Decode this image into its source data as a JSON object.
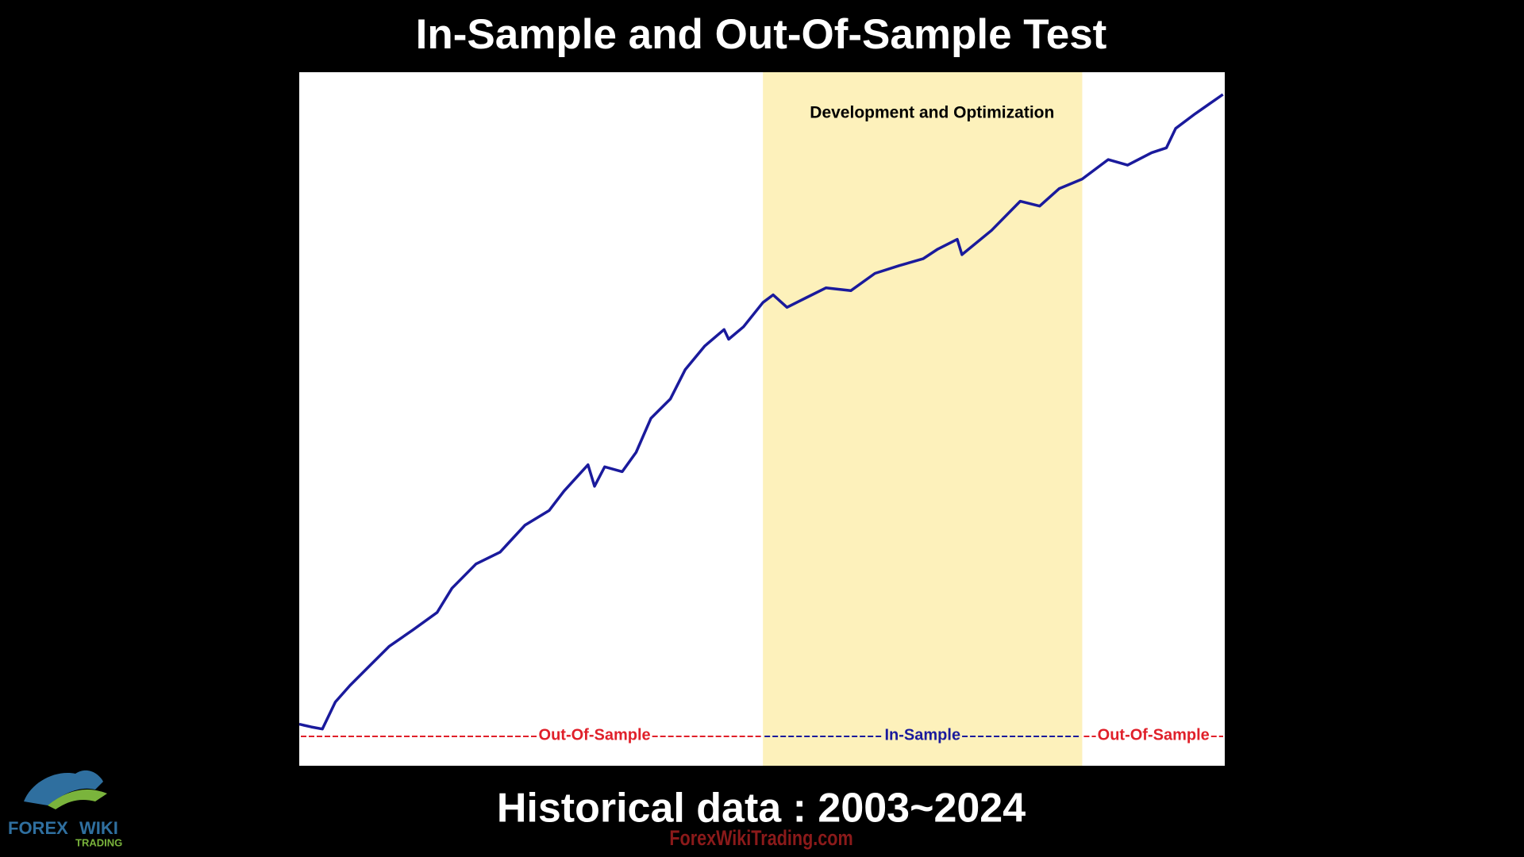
{
  "chart_data": {
    "type": "line",
    "title": "In-Sample and Out-Of-Sample Test",
    "subtitle": "Historical data : 2003~2024",
    "x": [
      0,
      1.3,
      2.5,
      3.9,
      5.5,
      7.6,
      9.7,
      12.3,
      14.9,
      16.5,
      19.1,
      21.7,
      24.4,
      27.0,
      28.6,
      31.2,
      31.9,
      33.0,
      34.9,
      36.4,
      38.0,
      40.1,
      41.7,
      43.8,
      45.9,
      46.4,
      48.0,
      50.1,
      51.2,
      52.7,
      54.8,
      56.9,
      59.6,
      62.2,
      64.8,
      67.4,
      69.0,
      71.1,
      71.6,
      74.8,
      77.9,
      80.0,
      82.1,
      84.6,
      87.4,
      89.5,
      92.1,
      93.7,
      94.7,
      96.8,
      99.8
    ],
    "series": [
      {
        "color": "#1a1a9c",
        "values": [
          6.0,
          5.6,
          5.3,
          9.2,
          11.6,
          14.4,
          17.2,
          19.6,
          22.1,
          25.6,
          29.1,
          30.8,
          34.7,
          36.8,
          39.6,
          43.4,
          40.3,
          43.1,
          42.4,
          45.2,
          50.1,
          52.9,
          57.1,
          60.5,
          62.9,
          61.5,
          63.3,
          66.8,
          67.9,
          66.1,
          67.5,
          68.9,
          68.5,
          71.0,
          72.1,
          73.1,
          74.5,
          75.9,
          73.7,
          77.2,
          81.4,
          80.7,
          83.2,
          84.6,
          87.4,
          86.6,
          88.4,
          89.1,
          91.9,
          94.0,
          96.8
        ]
      }
    ],
    "xlim": [
      0,
      100
    ],
    "ylim": [
      0,
      100
    ],
    "highlight": {
      "from": 50.1,
      "to": 84.6,
      "label": "Development and Optimization",
      "color": "#fdf1bb"
    },
    "segments": [
      {
        "from": 0,
        "to": 50.1,
        "label": "Out-Of-Sample",
        "color": "#e0202a"
      },
      {
        "from": 50.1,
        "to": 84.6,
        "label": "In-Sample",
        "color": "#1a1a9c"
      },
      {
        "from": 84.6,
        "to": 100,
        "label": "Out-Of-Sample",
        "color": "#e0202a"
      }
    ]
  },
  "footer": {
    "website": "ForexWikiTrading.com",
    "logo": [
      "FOREX",
      "WIKI",
      "TRADING"
    ]
  }
}
